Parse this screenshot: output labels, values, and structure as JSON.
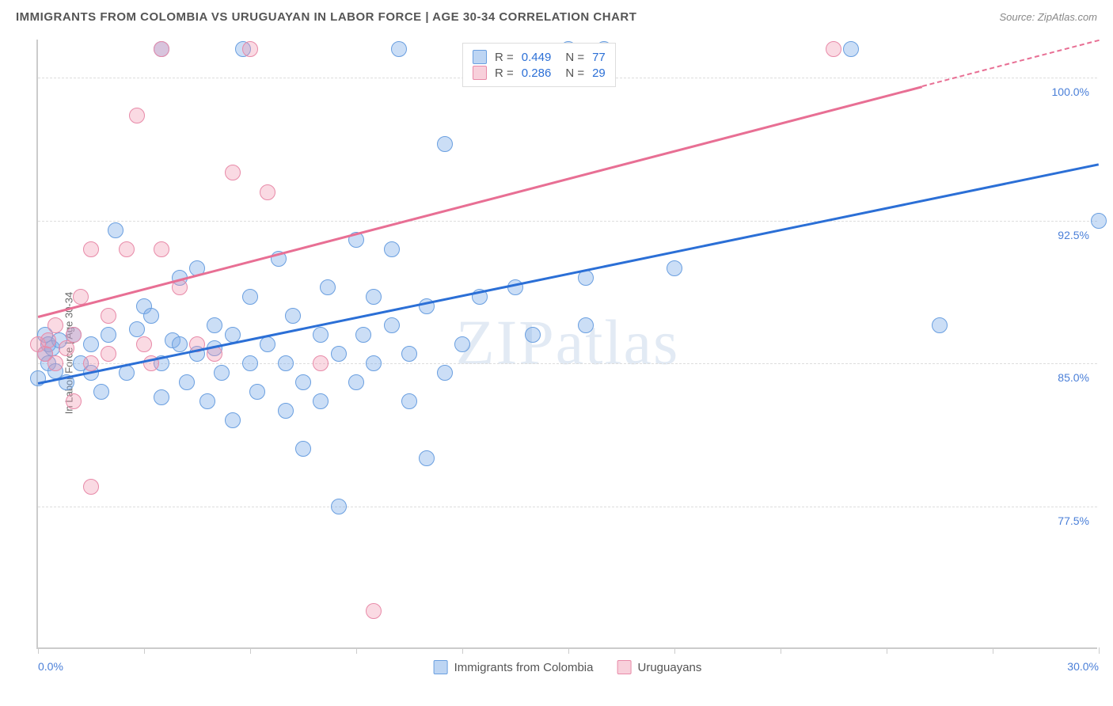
{
  "header": {
    "title": "IMMIGRANTS FROM COLOMBIA VS URUGUAYAN IN LABOR FORCE | AGE 30-34 CORRELATION CHART",
    "source": "Source: ZipAtlas.com"
  },
  "chart": {
    "type": "scatter",
    "ylabel": "In Labor Force | Age 30-34",
    "watermark": "ZIPatlas",
    "xlim": [
      0,
      30
    ],
    "ylim": [
      70,
      102
    ],
    "xticks": [
      0,
      3,
      6,
      9,
      12,
      15,
      18,
      21,
      24,
      27,
      30
    ],
    "xtick_labels": {
      "0": "0.0%",
      "30": "30.0%"
    },
    "yticks": [
      77.5,
      85.0,
      92.5,
      100.0
    ],
    "ytick_labels": [
      "77.5%",
      "85.0%",
      "92.5%",
      "100.0%"
    ],
    "grid_color": "#dddddd",
    "axis_color": "#cccccc",
    "background_color": "#ffffff",
    "series": [
      {
        "name": "Immigrants from Colombia",
        "color_fill": "rgba(124,172,232,0.4)",
        "color_border": "#6a9fe0",
        "marker": "circle",
        "marker_size": 20,
        "R": 0.449,
        "N": 77,
        "trend": {
          "x1": 0,
          "y1": 84.0,
          "x2": 30,
          "y2": 95.5,
          "color": "#2b6fd6",
          "dash_after_x": null
        },
        "points": [
          [
            0.0,
            84.2
          ],
          [
            0.2,
            86.5
          ],
          [
            0.2,
            85.5
          ],
          [
            0.3,
            86.0
          ],
          [
            0.3,
            85.0
          ],
          [
            0.4,
            85.8
          ],
          [
            0.5,
            84.6
          ],
          [
            0.6,
            86.2
          ],
          [
            0.8,
            84.0
          ],
          [
            1.0,
            86.5
          ],
          [
            1.2,
            85.0
          ],
          [
            1.5,
            84.5
          ],
          [
            1.5,
            86.0
          ],
          [
            1.8,
            83.5
          ],
          [
            2.0,
            86.5
          ],
          [
            2.2,
            92.0
          ],
          [
            2.5,
            84.5
          ],
          [
            2.8,
            86.8
          ],
          [
            3.0,
            88.0
          ],
          [
            3.2,
            87.5
          ],
          [
            3.5,
            101.5
          ],
          [
            3.5,
            85.0
          ],
          [
            3.5,
            83.2
          ],
          [
            3.8,
            86.2
          ],
          [
            4.0,
            89.5
          ],
          [
            4.0,
            86.0
          ],
          [
            4.2,
            84.0
          ],
          [
            4.5,
            90.0
          ],
          [
            4.5,
            85.5
          ],
          [
            4.8,
            83.0
          ],
          [
            5.0,
            87.0
          ],
          [
            5.0,
            85.8
          ],
          [
            5.2,
            84.5
          ],
          [
            5.5,
            86.5
          ],
          [
            5.5,
            82.0
          ],
          [
            5.8,
            101.5
          ],
          [
            6.0,
            88.5
          ],
          [
            6.0,
            85.0
          ],
          [
            6.2,
            83.5
          ],
          [
            6.5,
            86.0
          ],
          [
            6.8,
            90.5
          ],
          [
            7.0,
            82.5
          ],
          [
            7.0,
            85.0
          ],
          [
            7.2,
            87.5
          ],
          [
            7.5,
            84.0
          ],
          [
            7.5,
            80.5
          ],
          [
            8.0,
            86.5
          ],
          [
            8.0,
            83.0
          ],
          [
            8.2,
            89.0
          ],
          [
            8.5,
            85.5
          ],
          [
            8.5,
            77.5
          ],
          [
            9.0,
            91.5
          ],
          [
            9.0,
            84.0
          ],
          [
            9.2,
            86.5
          ],
          [
            9.5,
            85.0
          ],
          [
            9.5,
            88.5
          ],
          [
            10.0,
            91.0
          ],
          [
            10.0,
            87.0
          ],
          [
            10.2,
            101.5
          ],
          [
            10.5,
            83.0
          ],
          [
            10.5,
            85.5
          ],
          [
            11.0,
            88.0
          ],
          [
            11.0,
            80.0
          ],
          [
            11.5,
            96.5
          ],
          [
            11.5,
            84.5
          ],
          [
            12.0,
            86.0
          ],
          [
            12.5,
            88.5
          ],
          [
            13.5,
            89.0
          ],
          [
            14.0,
            86.5
          ],
          [
            15.0,
            101.5
          ],
          [
            15.5,
            89.5
          ],
          [
            15.5,
            87.0
          ],
          [
            16.0,
            101.5
          ],
          [
            18.0,
            90.0
          ],
          [
            23.0,
            101.5
          ],
          [
            25.5,
            87.0
          ],
          [
            30.0,
            92.5
          ]
        ]
      },
      {
        "name": "Uruguayans",
        "color_fill": "rgba(240,150,175,0.35)",
        "color_border": "#e88aa8",
        "marker": "circle",
        "marker_size": 20,
        "R": 0.286,
        "N": 29,
        "trend": {
          "x1": 0,
          "y1": 87.5,
          "x2": 30,
          "y2": 102.0,
          "color": "#e86f94",
          "dash_after_x": 25
        },
        "points": [
          [
            0.0,
            86.0
          ],
          [
            0.2,
            85.5
          ],
          [
            0.3,
            86.2
          ],
          [
            0.5,
            85.0
          ],
          [
            0.5,
            87.0
          ],
          [
            0.8,
            85.8
          ],
          [
            1.0,
            86.5
          ],
          [
            1.0,
            83.0
          ],
          [
            1.2,
            88.5
          ],
          [
            1.5,
            91.0
          ],
          [
            1.5,
            85.0
          ],
          [
            1.5,
            78.5
          ],
          [
            2.0,
            87.5
          ],
          [
            2.0,
            85.5
          ],
          [
            2.5,
            91.0
          ],
          [
            2.8,
            98.0
          ],
          [
            3.0,
            86.0
          ],
          [
            3.2,
            85.0
          ],
          [
            3.5,
            101.5
          ],
          [
            3.5,
            91.0
          ],
          [
            4.0,
            89.0
          ],
          [
            4.5,
            86.0
          ],
          [
            5.0,
            85.5
          ],
          [
            5.5,
            95.0
          ],
          [
            6.0,
            101.5
          ],
          [
            6.5,
            94.0
          ],
          [
            8.0,
            85.0
          ],
          [
            9.5,
            72.0
          ],
          [
            22.5,
            101.5
          ]
        ]
      }
    ],
    "legend_top": {
      "rows": [
        {
          "swatch": "blue",
          "r_label": "R =",
          "r_val": "0.449",
          "n_label": "N =",
          "n_val": "77"
        },
        {
          "swatch": "pink",
          "r_label": "R =",
          "r_val": "0.286",
          "n_label": "N =",
          "n_val": "29"
        }
      ]
    },
    "legend_bottom": {
      "items": [
        {
          "swatch": "blue",
          "label": "Immigrants from Colombia"
        },
        {
          "swatch": "pink",
          "label": "Uruguayans"
        }
      ]
    }
  }
}
